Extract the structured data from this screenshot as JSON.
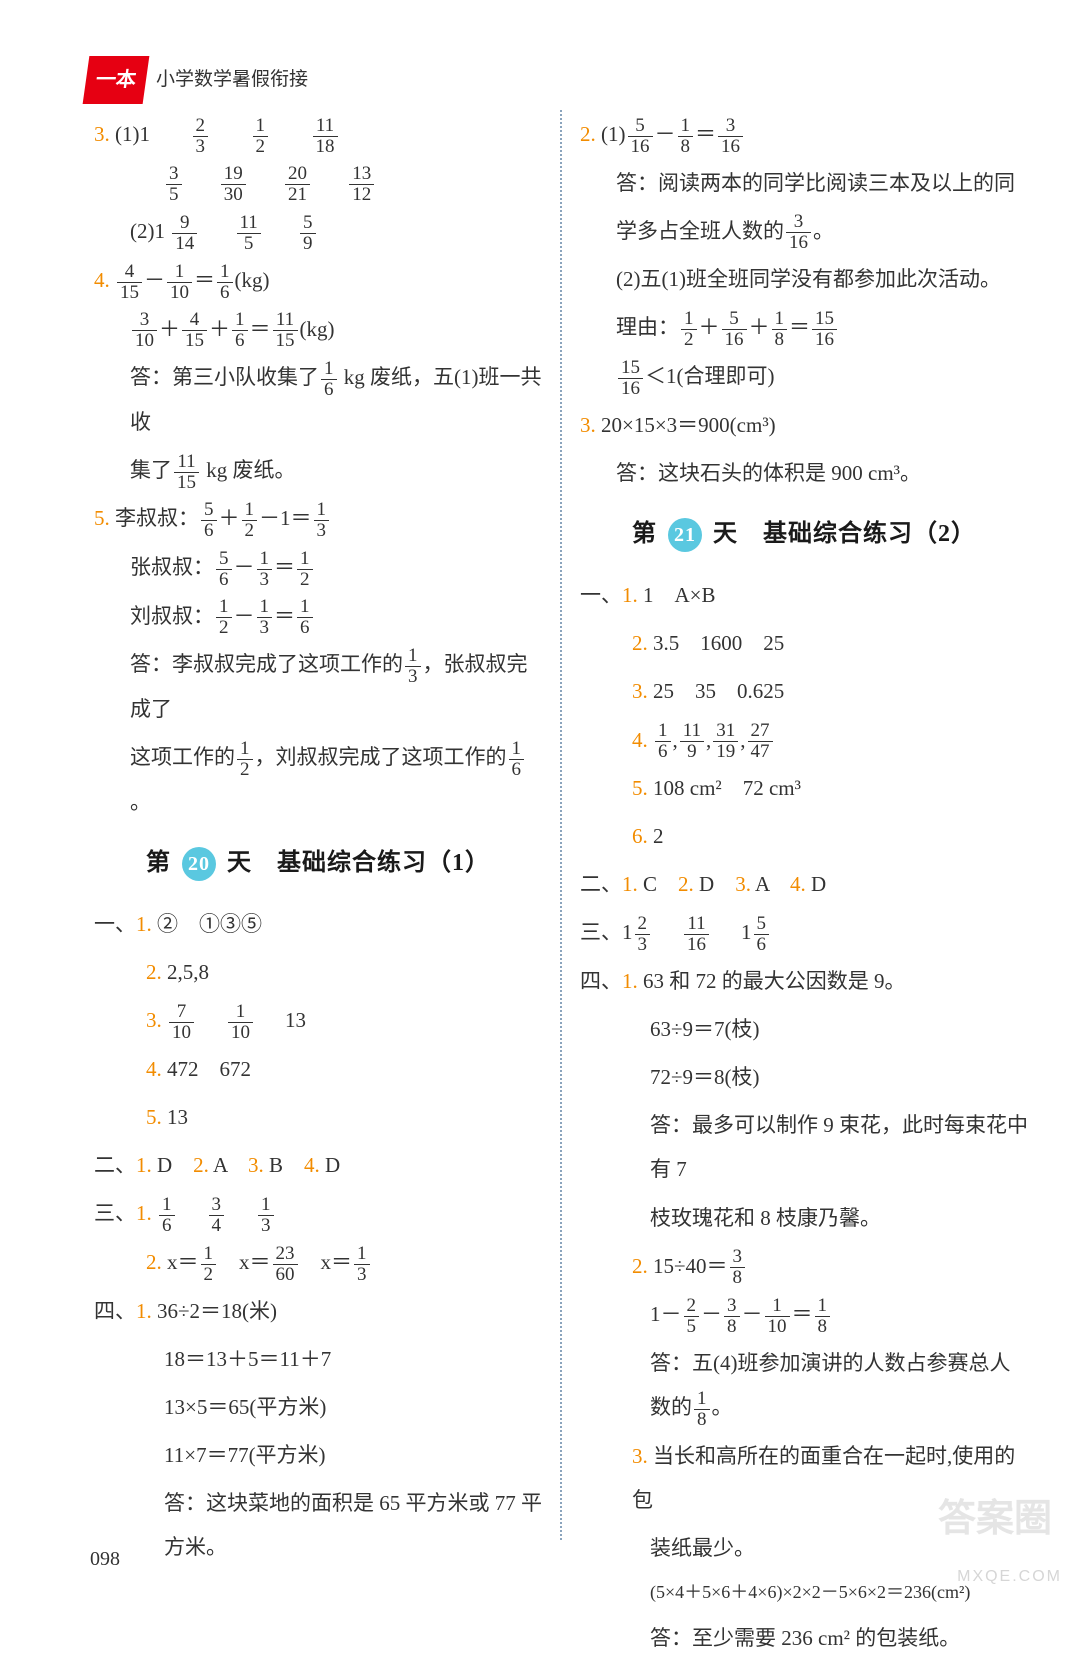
{
  "header": {
    "badge": "一本",
    "text": "小学数学暑假衔接"
  },
  "left": {
    "q3": {
      "num": "3.",
      "l1a": "(1)1",
      "l4a": "(2)1"
    },
    "q4": {
      "num": "4.",
      "ans1": "答：第三小队收集了",
      "ans1b": " kg 废纸，五(1)班一共收",
      "ans2a": "集了",
      "ans2b": " kg 废纸。"
    },
    "q5": {
      "num": "5.",
      "li": "李叔叔：",
      "zhang": "张叔叔：",
      "liu": "刘叔叔：",
      "a1": "答：李叔叔完成了这项工作的",
      "a1b": "，张叔叔完成了",
      "a2a": "这项工作的",
      "a2b": "，刘叔叔完成了这项工作的",
      "a2c": "。"
    },
    "sec20": {
      "pre": "第",
      "day": "20",
      "mid": "天　基础综合练习（1）"
    },
    "yi": {
      "label": "一、",
      "l1": "②　①③⑤",
      "l2": "2,5,8",
      "l3b": "13",
      "l4": "472　672",
      "l5": "13"
    },
    "er": {
      "label": "二、",
      "text": "D　2. A　3. B　4. D"
    },
    "san": {
      "label": "三、",
      "l2": "x＝",
      "l2b": "　x＝",
      "l2c": "　x＝"
    },
    "si": {
      "label": "四、",
      "l1": "36÷2＝18(米)",
      "l2": "18＝13＋5＝11＋7",
      "l3": "13×5＝65(平方米)",
      "l4": "11×7＝77(平方米)",
      "l5": "答：这块菜地的面积是 65 平方米或 77 平方米。"
    }
  },
  "right": {
    "q2": {
      "num": "2.",
      "l1a": "(1)",
      "a1": "答：阅读两本的同学比阅读三本及以上的同",
      "a2a": "学多占全班人数的",
      "a2b": "。",
      "l2": "(2)五(1)班全班同学没有都参加此次活动。",
      "r1": "理由：",
      "r2": "＜1(合理即可)"
    },
    "q3": {
      "num": "3.",
      "l1": "20×15×3＝900(cm³)",
      "l2": "答：这块石头的体积是 900 cm³。"
    },
    "sec21": {
      "pre": "第",
      "day": "21",
      "mid": "天　基础综合练习（2）"
    },
    "yi": {
      "label": "一、",
      "l1": "1　A×B",
      "l2": "3.5　1600　25",
      "l3": "25　35　0.625",
      "l5": "108 cm²　72 cm³",
      "l6": "2"
    },
    "er": {
      "label": "二、",
      "text": "C　2. D　3. A　4. D"
    },
    "san": {
      "label": "三、"
    },
    "si": {
      "label": "四、",
      "l1": "63 和 72 的最大公因数是 9。",
      "l2": "63÷9＝7(枝)",
      "l3": "72÷9＝8(枝)",
      "l4": "答：最多可以制作 9 束花，此时每束花中有 7",
      "l4b": "枝玫瑰花和 8 枝康乃馨。",
      "q2a": "15÷40＝",
      "q2b1": "1－",
      "q2ans": "答：五(4)班参加演讲的人数占参赛总人数的",
      "q2ansb": "。",
      "q3a": "当长和高所在的面重合在一起时,使用的包",
      "q3b": "装纸最少。",
      "q3c": "(5×4＋5×6＋4×6)×2×2－5×6×2＝236(cm²)",
      "q3d": "答：至少需要 236 cm² 的包装纸。"
    }
  },
  "page": "098",
  "wm1": "答案圈",
  "wm2": "MXQE.COM"
}
